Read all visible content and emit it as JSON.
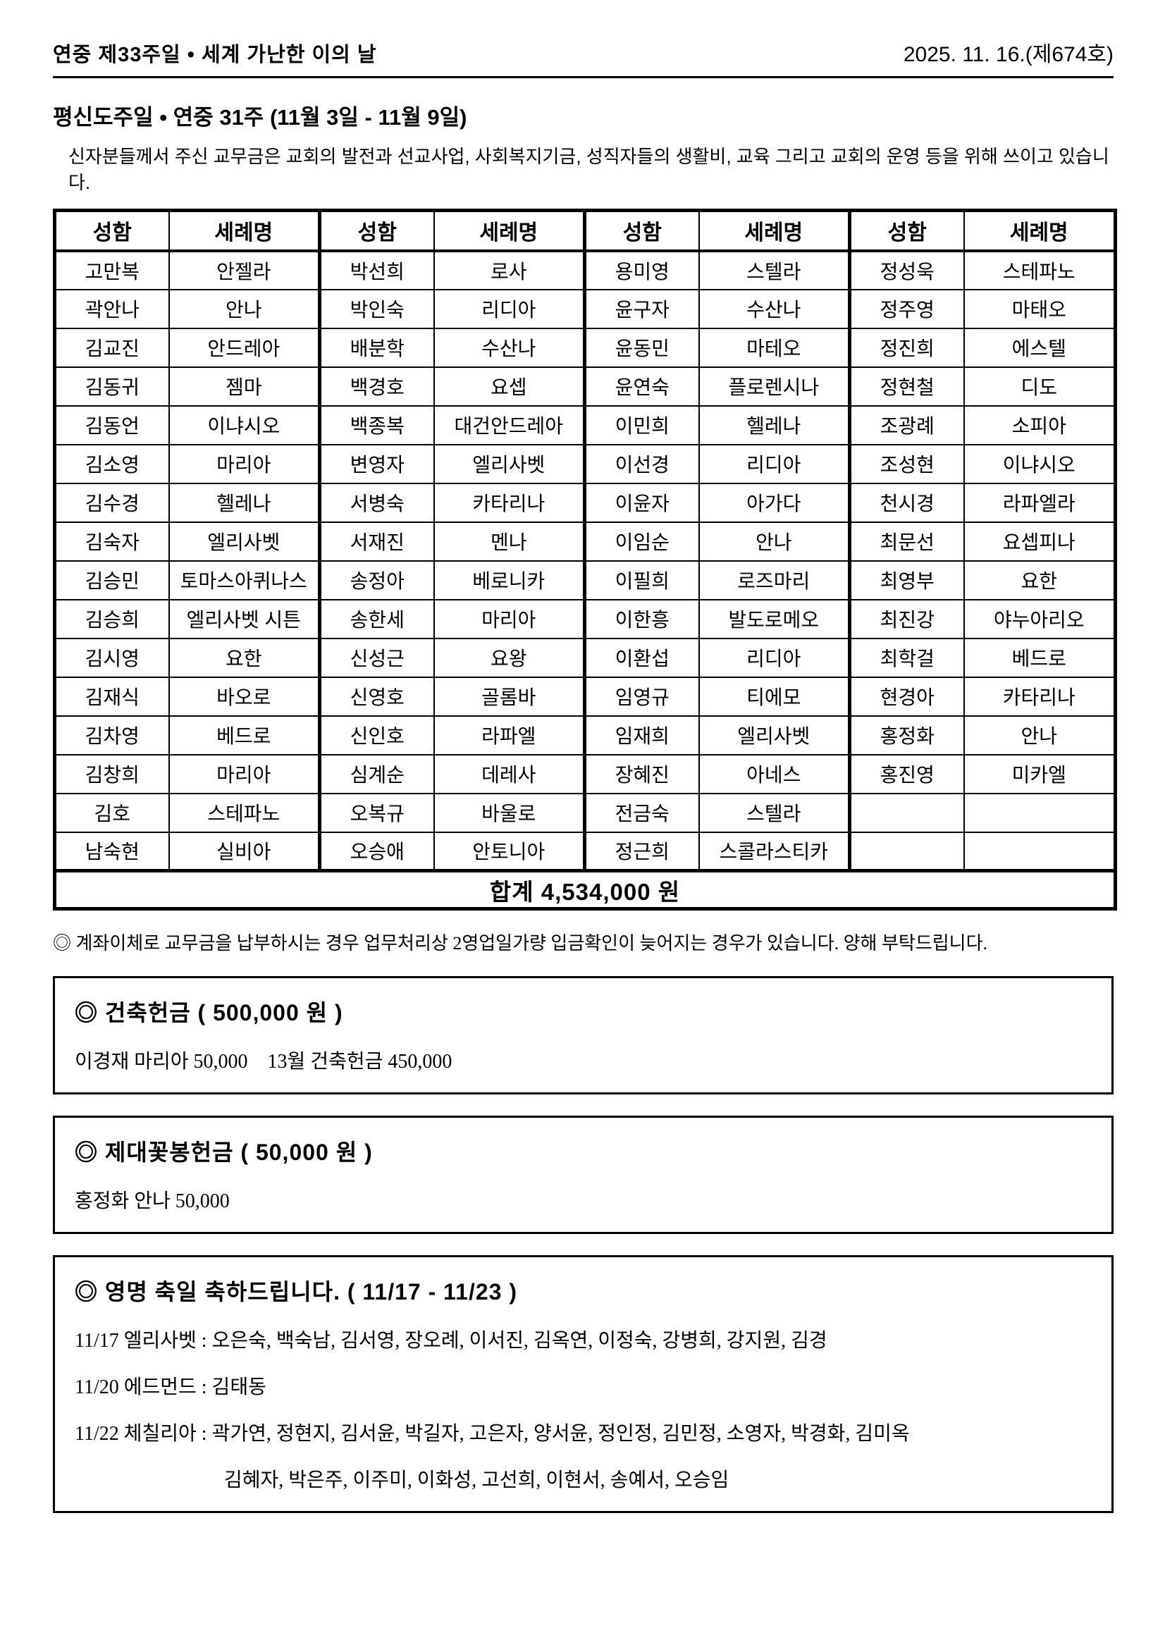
{
  "header": {
    "left": "연중 제33주일 • 세계 가난한 이의 날",
    "right": "2025. 11. 16.(제674호)"
  },
  "section": {
    "title": "평신도주일 • 연중 31주 (11월 3일 - 11월 9일)",
    "intro": "신자분들께서 주신 교무금은 교회의 발전과 선교사업, 사회복지기금, 성직자들의 생활비, 교육 그리고 교회의 운영 등을 위해 쓰이고 있습니다."
  },
  "table": {
    "column_headers": [
      "성함",
      "세례명",
      "성함",
      "세례명",
      "성함",
      "세례명",
      "성함",
      "세례명"
    ],
    "rows": [
      [
        "고만복",
        "안젤라",
        "박선희",
        "로사",
        "용미영",
        "스텔라",
        "정성욱",
        "스테파노"
      ],
      [
        "곽안나",
        "안나",
        "박인숙",
        "리디아",
        "윤구자",
        "수산나",
        "정주영",
        "마태오"
      ],
      [
        "김교진",
        "안드레아",
        "배분학",
        "수산나",
        "윤동민",
        "마테오",
        "정진희",
        "에스텔"
      ],
      [
        "김동귀",
        "젬마",
        "백경호",
        "요셉",
        "윤연숙",
        "플로렌시나",
        "정현철",
        "디도"
      ],
      [
        "김동언",
        "이냐시오",
        "백종복",
        "대건안드레아",
        "이민희",
        "헬레나",
        "조광례",
        "소피아"
      ],
      [
        "김소영",
        "마리아",
        "변영자",
        "엘리사벳",
        "이선경",
        "리디아",
        "조성현",
        "이냐시오"
      ],
      [
        "김수경",
        "헬레나",
        "서병숙",
        "카타리나",
        "이윤자",
        "아가다",
        "천시경",
        "라파엘라"
      ],
      [
        "김숙자",
        "엘리사벳",
        "서재진",
        "멘나",
        "이임순",
        "안나",
        "최문선",
        "요셉피나"
      ],
      [
        "김승민",
        "토마스아퀴나스",
        "송정아",
        "베로니카",
        "이필희",
        "로즈마리",
        "최영부",
        "요한"
      ],
      [
        "김승희",
        "엘리사벳 시튼",
        "송한세",
        "마리아",
        "이한흥",
        "발도로메오",
        "최진강",
        "야누아리오"
      ],
      [
        "김시영",
        "요한",
        "신성근",
        "요왕",
        "이환섭",
        "리디아",
        "최학걸",
        "베드로"
      ],
      [
        "김재식",
        "바오로",
        "신영호",
        "골롬바",
        "임영규",
        "티에모",
        "현경아",
        "카타리나"
      ],
      [
        "김차영",
        "베드로",
        "신인호",
        "라파엘",
        "임재희",
        "엘리사벳",
        "홍정화",
        "안나"
      ],
      [
        "김창희",
        "마리아",
        "심계순",
        "데레사",
        "장혜진",
        "아네스",
        "홍진영",
        "미카엘"
      ],
      [
        "김호",
        "스테파노",
        "오복규",
        "바울로",
        "전금숙",
        "스텔라",
        "",
        ""
      ],
      [
        "남숙현",
        "실비아",
        "오승애",
        "안토니아",
        "정근희",
        "스콜라스티카",
        "",
        ""
      ]
    ],
    "total": "합계 4,534,000 원"
  },
  "notice": "◎ 계좌이체로 교무금을 납부하시는 경우 업무처리상 2영업일가량 입금확인이 늦어지는 경우가 있습니다. 양해 부탁드립니다.",
  "boxes": [
    {
      "title": "◎ 건축헌금 ( 500,000 원 )",
      "lines": [
        "이경재 마리아 50,000    13월 건축헌금 450,000"
      ]
    },
    {
      "title": "◎ 제대꽃봉헌금 ( 50,000 원 )",
      "lines": [
        "홍정화 안나 50,000"
      ]
    },
    {
      "title": "◎ 영명 축일 축하드립니다. ( 11/17 - 11/23 )",
      "lines": [
        "11/17 엘리사벳 : 오은숙, 백숙남, 김서영, 장오례, 이서진, 김옥연, 이정숙, 강병희, 강지원, 김경",
        "11/20 에드먼드 : 김태동",
        "11/22 체칠리아 : 곽가연, 정현지, 김서윤, 박길자, 고은자, 양서윤, 정인정, 김민정, 소영자, 박경화, 김미옥",
        "김혜자, 박은주, 이주미, 이화성, 고선희, 이현서, 송예서, 오승임"
      ]
    }
  ]
}
